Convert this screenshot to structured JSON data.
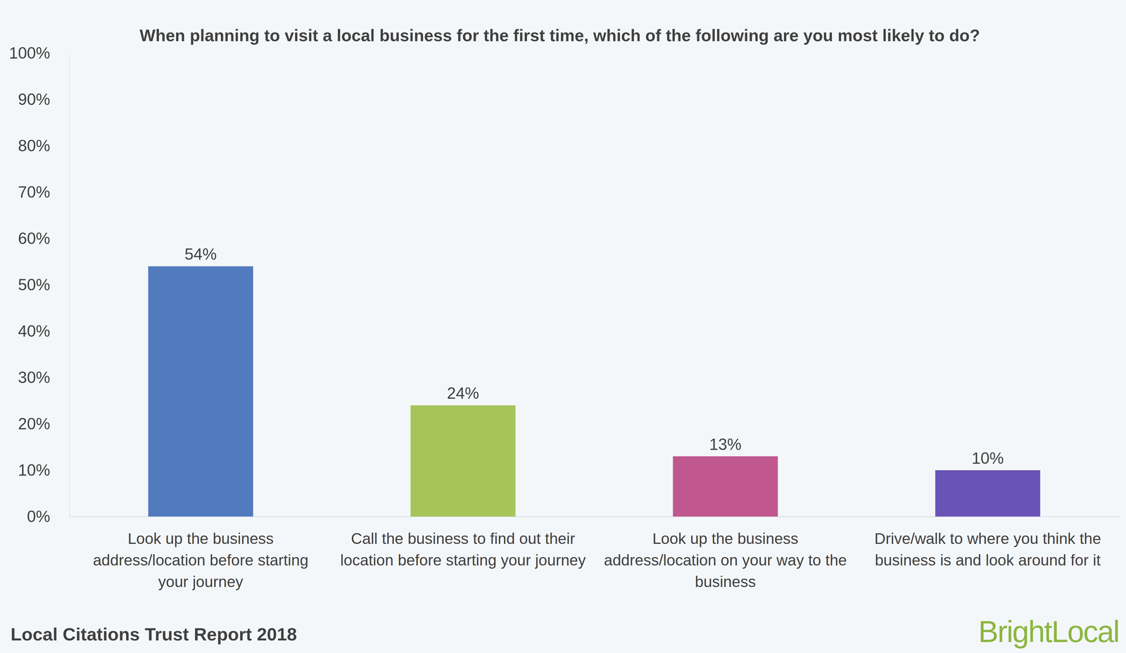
{
  "chart_data": {
    "type": "bar",
    "title": "When planning to visit a local business for the first time, which of the following are you most likely to do?",
    "categories": [
      "Look up the business address/location before starting your journey",
      "Call the business to find out their location before starting your journey",
      "Look up the business address/location on your way to the business",
      "Drive/walk to where you think the business is and look around for it"
    ],
    "values": [
      54,
      24,
      13,
      10
    ],
    "value_labels": [
      "54%",
      "24%",
      "13%",
      "10%"
    ],
    "colors": [
      "#517bbd",
      "#a5c55a",
      "#c0578f",
      "#6a53b7"
    ],
    "ylim": [
      0,
      100
    ],
    "yticks": [
      {
        "value": 0,
        "label": "0%"
      },
      {
        "value": 10,
        "label": "10%"
      },
      {
        "value": 20,
        "label": "20%"
      },
      {
        "value": 30,
        "label": "30%"
      },
      {
        "value": 40,
        "label": "40%"
      },
      {
        "value": 50,
        "label": "50%"
      },
      {
        "value": 60,
        "label": "60%"
      },
      {
        "value": 70,
        "label": "70%"
      },
      {
        "value": 80,
        "label": "80%"
      },
      {
        "value": 90,
        "label": "90%"
      },
      {
        "value": 100,
        "label": "100%"
      }
    ],
    "grid": false,
    "data_labels": true,
    "source": "Local Citations Trust Report 2018",
    "logo": "BrightLocal"
  }
}
